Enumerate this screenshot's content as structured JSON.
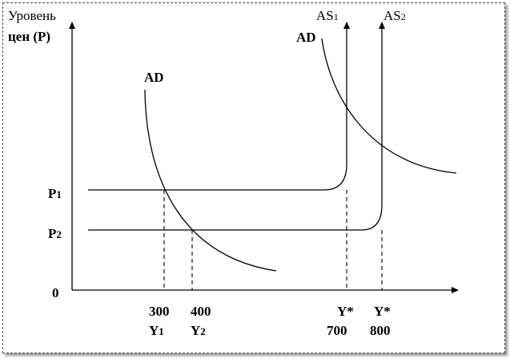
{
  "axes": {
    "y_label_line1": "Уровень",
    "y_label_line2": "цен (P)",
    "origin": "0"
  },
  "curves": {
    "ad1": "AD",
    "ad2": "AD",
    "as1_main": "AS",
    "as1_sub": "1",
    "as2_main": "AS",
    "as2_sub": "2"
  },
  "price_levels": {
    "p1_main": "P",
    "p1_sub": "1",
    "p2_main": "P",
    "p2_sub": "2"
  },
  "x_ticks": {
    "t300": "300",
    "t400": "400",
    "y1_main": "Y",
    "y1_sub": "1",
    "y2_main": "Y",
    "y2_sub": "2",
    "ystar1": "Y*",
    "t700": "700",
    "ystar2": "Y*",
    "t800": "800"
  }
}
